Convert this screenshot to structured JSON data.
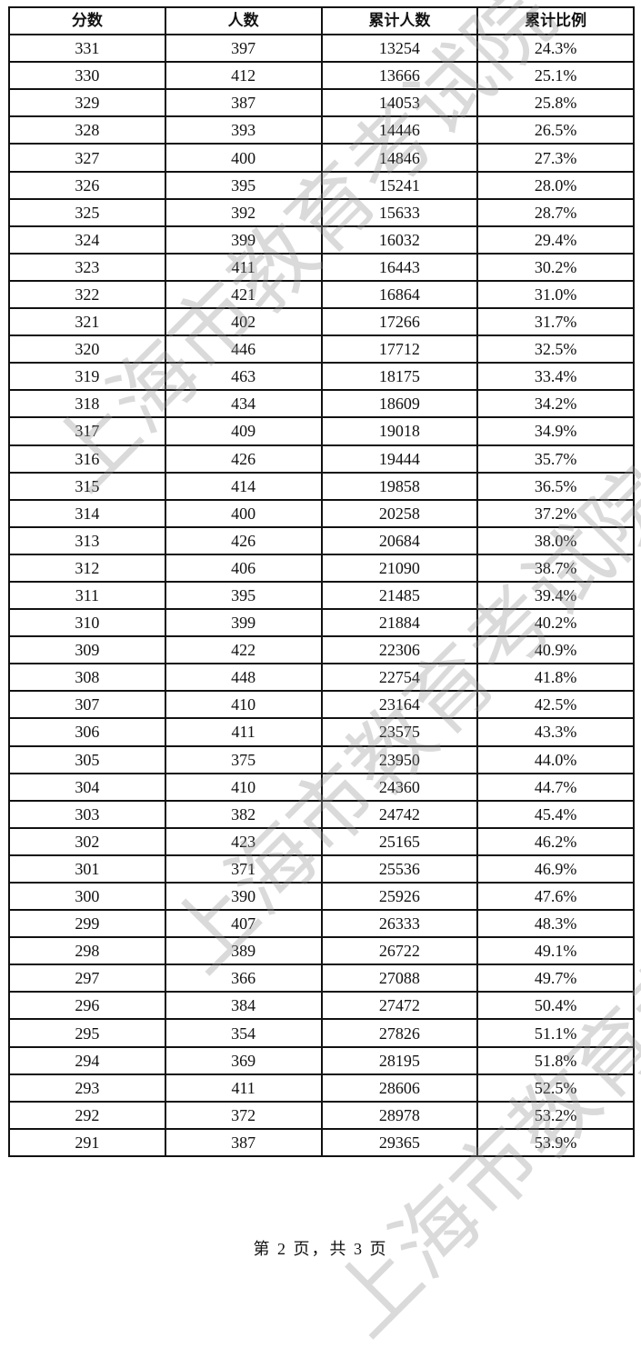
{
  "table": {
    "headers": [
      "分数",
      "人数",
      "累计人数",
      "累计比例"
    ],
    "rows": [
      [
        "331",
        "397",
        "13254",
        "24.3%"
      ],
      [
        "330",
        "412",
        "13666",
        "25.1%"
      ],
      [
        "329",
        "387",
        "14053",
        "25.8%"
      ],
      [
        "328",
        "393",
        "14446",
        "26.5%"
      ],
      [
        "327",
        "400",
        "14846",
        "27.3%"
      ],
      [
        "326",
        "395",
        "15241",
        "28.0%"
      ],
      [
        "325",
        "392",
        "15633",
        "28.7%"
      ],
      [
        "324",
        "399",
        "16032",
        "29.4%"
      ],
      [
        "323",
        "411",
        "16443",
        "30.2%"
      ],
      [
        "322",
        "421",
        "16864",
        "31.0%"
      ],
      [
        "321",
        "402",
        "17266",
        "31.7%"
      ],
      [
        "320",
        "446",
        "17712",
        "32.5%"
      ],
      [
        "319",
        "463",
        "18175",
        "33.4%"
      ],
      [
        "318",
        "434",
        "18609",
        "34.2%"
      ],
      [
        "317",
        "409",
        "19018",
        "34.9%"
      ],
      [
        "316",
        "426",
        "19444",
        "35.7%"
      ],
      [
        "315",
        "414",
        "19858",
        "36.5%"
      ],
      [
        "314",
        "400",
        "20258",
        "37.2%"
      ],
      [
        "313",
        "426",
        "20684",
        "38.0%"
      ],
      [
        "312",
        "406",
        "21090",
        "38.7%"
      ],
      [
        "311",
        "395",
        "21485",
        "39.4%"
      ],
      [
        "310",
        "399",
        "21884",
        "40.2%"
      ],
      [
        "309",
        "422",
        "22306",
        "40.9%"
      ],
      [
        "308",
        "448",
        "22754",
        "41.8%"
      ],
      [
        "307",
        "410",
        "23164",
        "42.5%"
      ],
      [
        "306",
        "411",
        "23575",
        "43.3%"
      ],
      [
        "305",
        "375",
        "23950",
        "44.0%"
      ],
      [
        "304",
        "410",
        "24360",
        "44.7%"
      ],
      [
        "303",
        "382",
        "24742",
        "45.4%"
      ],
      [
        "302",
        "423",
        "25165",
        "46.2%"
      ],
      [
        "301",
        "371",
        "25536",
        "46.9%"
      ],
      [
        "300",
        "390",
        "25926",
        "47.6%"
      ],
      [
        "299",
        "407",
        "26333",
        "48.3%"
      ],
      [
        "298",
        "389",
        "26722",
        "49.1%"
      ],
      [
        "297",
        "366",
        "27088",
        "49.7%"
      ],
      [
        "296",
        "384",
        "27472",
        "50.4%"
      ],
      [
        "295",
        "354",
        "27826",
        "51.1%"
      ],
      [
        "294",
        "369",
        "28195",
        "51.8%"
      ],
      [
        "293",
        "411",
        "28606",
        "52.5%"
      ],
      [
        "292",
        "372",
        "28978",
        "53.2%"
      ],
      [
        "291",
        "387",
        "29365",
        "53.9%"
      ]
    ]
  },
  "footer": "第 2 页，共 3 页",
  "watermark": "上海市教育考试院"
}
